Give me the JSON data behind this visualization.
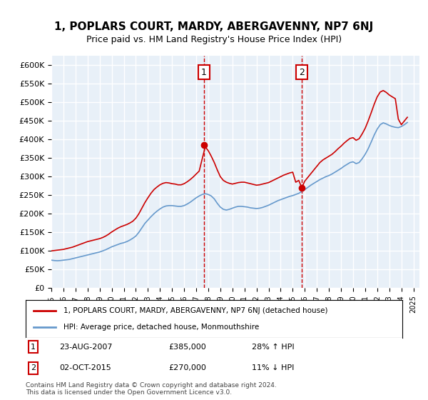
{
  "title": "1, POPLARS COURT, MARDY, ABERGAVENNY, NP7 6NJ",
  "subtitle": "Price paid vs. HM Land Registry's House Price Index (HPI)",
  "ylim": [
    0,
    625000
  ],
  "yticks": [
    0,
    50000,
    100000,
    150000,
    200000,
    250000,
    300000,
    350000,
    400000,
    450000,
    500000,
    550000,
    600000
  ],
  "ytick_labels": [
    "£0",
    "£50K",
    "£100K",
    "£150K",
    "£200K",
    "£250K",
    "£300K",
    "£350K",
    "£400K",
    "£450K",
    "£500K",
    "£550K",
    "£600K"
  ],
  "background_color": "#ffffff",
  "plot_bg_color": "#e8f0f8",
  "grid_color": "#ffffff",
  "sale1": {
    "date": "23-AUG-2007",
    "price": 385000,
    "year": 2007.65,
    "label": "1",
    "hpi_pct": "28% ↑ HPI"
  },
  "sale2": {
    "date": "02-OCT-2015",
    "price": 270000,
    "year": 2015.75,
    "label": "2",
    "hpi_pct": "11% ↓ HPI"
  },
  "legend_line1": "1, POPLARS COURT, MARDY, ABERGAVENNY, NP7 6NJ (detached house)",
  "legend_line2": "HPI: Average price, detached house, Monmouthshire",
  "footnote": "Contains HM Land Registry data © Crown copyright and database right 2024.\nThis data is licensed under the Open Government Licence v3.0.",
  "red_color": "#cc0000",
  "blue_color": "#6699cc",
  "title_fontsize": 11,
  "subtitle_fontsize": 9,
  "hpi_data": {
    "years": [
      1995.0,
      1995.25,
      1995.5,
      1995.75,
      1996.0,
      1996.25,
      1996.5,
      1996.75,
      1997.0,
      1997.25,
      1997.5,
      1997.75,
      1998.0,
      1998.25,
      1998.5,
      1998.75,
      1999.0,
      1999.25,
      1999.5,
      1999.75,
      2000.0,
      2000.25,
      2000.5,
      2000.75,
      2001.0,
      2001.25,
      2001.5,
      2001.75,
      2002.0,
      2002.25,
      2002.5,
      2002.75,
      2003.0,
      2003.25,
      2003.5,
      2003.75,
      2004.0,
      2004.25,
      2004.5,
      2004.75,
      2005.0,
      2005.25,
      2005.5,
      2005.75,
      2006.0,
      2006.25,
      2006.5,
      2006.75,
      2007.0,
      2007.25,
      2007.5,
      2007.75,
      2008.0,
      2008.25,
      2008.5,
      2008.75,
      2009.0,
      2009.25,
      2009.5,
      2009.75,
      2010.0,
      2010.25,
      2010.5,
      2010.75,
      2011.0,
      2011.25,
      2011.5,
      2011.75,
      2012.0,
      2012.25,
      2012.5,
      2012.75,
      2013.0,
      2013.25,
      2013.5,
      2013.75,
      2014.0,
      2014.25,
      2014.5,
      2014.75,
      2015.0,
      2015.25,
      2015.5,
      2015.75,
      2016.0,
      2016.25,
      2016.5,
      2016.75,
      2017.0,
      2017.25,
      2017.5,
      2017.75,
      2018.0,
      2018.25,
      2018.5,
      2018.75,
      2019.0,
      2019.25,
      2019.5,
      2019.75,
      2020.0,
      2020.25,
      2020.5,
      2020.75,
      2021.0,
      2021.25,
      2021.5,
      2021.75,
      2022.0,
      2022.25,
      2022.5,
      2022.75,
      2023.0,
      2023.25,
      2023.5,
      2023.75,
      2024.0,
      2024.25,
      2024.5
    ],
    "values": [
      75000,
      74000,
      73500,
      74000,
      75000,
      76000,
      77000,
      79000,
      81000,
      83000,
      85000,
      87000,
      89000,
      91000,
      93000,
      95000,
      97000,
      100000,
      103000,
      107000,
      111000,
      114000,
      117000,
      120000,
      122000,
      125000,
      129000,
      134000,
      140000,
      150000,
      162000,
      174000,
      183000,
      192000,
      200000,
      207000,
      213000,
      218000,
      221000,
      222000,
      222000,
      221000,
      220000,
      220000,
      222000,
      226000,
      231000,
      237000,
      243000,
      248000,
      252000,
      254000,
      252000,
      248000,
      240000,
      228000,
      218000,
      212000,
      210000,
      212000,
      215000,
      218000,
      220000,
      220000,
      219000,
      218000,
      216000,
      215000,
      214000,
      215000,
      217000,
      220000,
      223000,
      227000,
      231000,
      235000,
      238000,
      241000,
      244000,
      247000,
      249000,
      252000,
      255000,
      260000,
      265000,
      271000,
      277000,
      282000,
      287000,
      292000,
      296000,
      300000,
      303000,
      307000,
      312000,
      317000,
      322000,
      328000,
      333000,
      338000,
      340000,
      335000,
      338000,
      348000,
      360000,
      375000,
      393000,
      412000,
      428000,
      440000,
      445000,
      442000,
      438000,
      435000,
      433000,
      432000,
      435000,
      440000,
      446000
    ]
  },
  "red_data": {
    "years": [
      1995.0,
      1995.25,
      1995.5,
      1995.75,
      1996.0,
      1996.25,
      1996.5,
      1996.75,
      1997.0,
      1997.25,
      1997.5,
      1997.75,
      1998.0,
      1998.25,
      1998.5,
      1998.75,
      1999.0,
      1999.25,
      1999.5,
      1999.75,
      2000.0,
      2000.25,
      2000.5,
      2000.75,
      2001.0,
      2001.25,
      2001.5,
      2001.75,
      2002.0,
      2002.25,
      2002.5,
      2002.75,
      2003.0,
      2003.25,
      2003.5,
      2003.75,
      2004.0,
      2004.25,
      2004.5,
      2004.75,
      2005.0,
      2005.25,
      2005.5,
      2005.75,
      2006.0,
      2006.25,
      2006.5,
      2006.75,
      2007.0,
      2007.25,
      2007.5,
      2007.75,
      2008.0,
      2008.25,
      2008.5,
      2008.75,
      2009.0,
      2009.25,
      2009.5,
      2009.75,
      2010.0,
      2010.25,
      2010.5,
      2010.75,
      2011.0,
      2011.25,
      2011.5,
      2011.75,
      2012.0,
      2012.25,
      2012.5,
      2012.75,
      2013.0,
      2013.25,
      2013.5,
      2013.75,
      2014.0,
      2014.25,
      2014.5,
      2014.75,
      2015.0,
      2015.25,
      2015.5,
      2015.75,
      2016.0,
      2016.25,
      2016.5,
      2016.75,
      2017.0,
      2017.25,
      2017.5,
      2017.75,
      2018.0,
      2018.25,
      2018.5,
      2018.75,
      2019.0,
      2019.25,
      2019.5,
      2019.75,
      2020.0,
      2020.25,
      2020.5,
      2020.75,
      2021.0,
      2021.25,
      2021.5,
      2021.75,
      2022.0,
      2022.25,
      2022.5,
      2022.75,
      2023.0,
      2023.25,
      2023.5,
      2023.75,
      2024.0,
      2024.25,
      2024.5
    ],
    "values": [
      100000,
      101000,
      102000,
      103000,
      104000,
      106000,
      108000,
      110000,
      113000,
      116000,
      119000,
      122000,
      125000,
      127000,
      129000,
      131000,
      133000,
      136000,
      140000,
      145000,
      151000,
      156000,
      161000,
      165000,
      168000,
      171000,
      175000,
      180000,
      188000,
      200000,
      215000,
      230000,
      243000,
      255000,
      265000,
      272000,
      278000,
      282000,
      284000,
      283000,
      281000,
      280000,
      278000,
      278000,
      281000,
      286000,
      292000,
      299000,
      307000,
      315000,
      348000,
      380000,
      370000,
      355000,
      338000,
      318000,
      300000,
      290000,
      285000,
      282000,
      280000,
      282000,
      284000,
      285000,
      285000,
      283000,
      281000,
      279000,
      277000,
      278000,
      280000,
      282000,
      284000,
      288000,
      292000,
      296000,
      300000,
      304000,
      307000,
      310000,
      312000,
      285000,
      290000,
      270000,
      288000,
      298000,
      308000,
      318000,
      328000,
      338000,
      345000,
      350000,
      355000,
      360000,
      367000,
      375000,
      382000,
      390000,
      397000,
      403000,
      405000,
      398000,
      402000,
      415000,
      430000,
      450000,
      472000,
      495000,
      515000,
      528000,
      532000,
      527000,
      520000,
      515000,
      510000,
      455000,
      440000,
      450000,
      460000
    ]
  }
}
